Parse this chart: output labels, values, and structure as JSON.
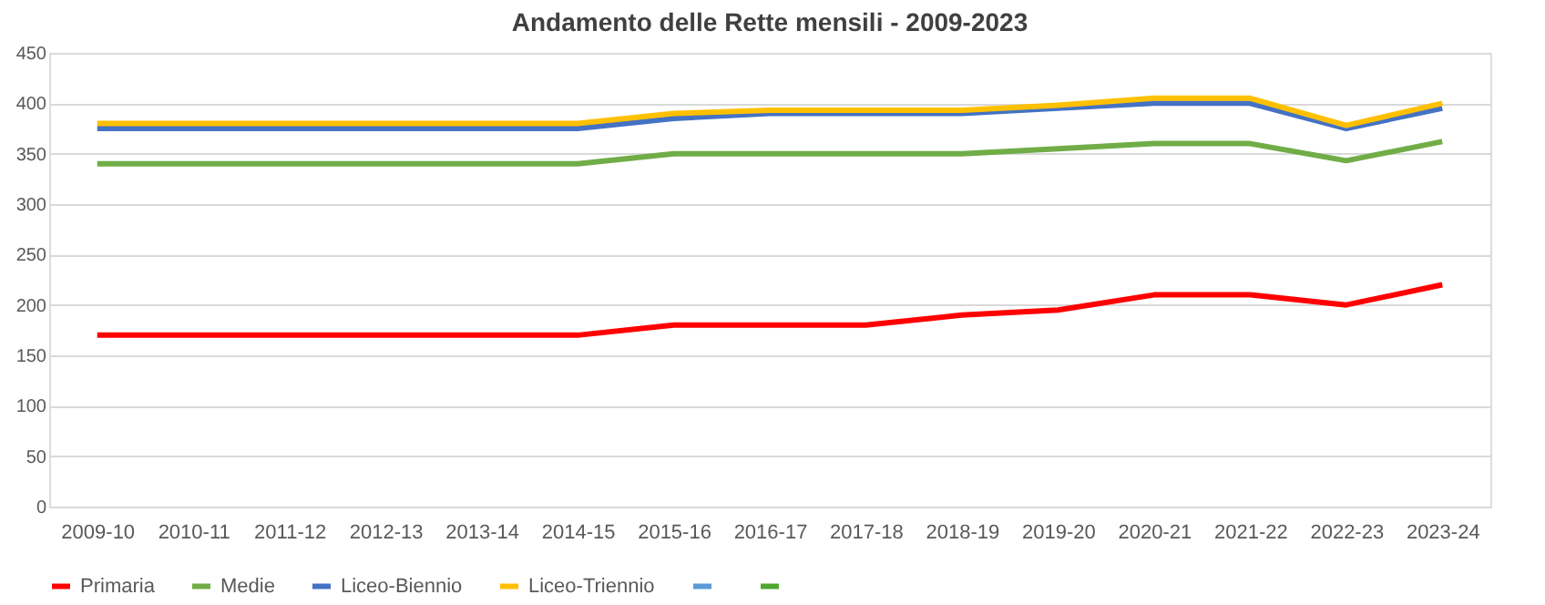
{
  "chart_data": {
    "type": "line",
    "title": "Andamento delle Rette mensili - 2009-2023",
    "categories": [
      "2009-10",
      "2010-11",
      "2011-12",
      "2012-13",
      "2013-14",
      "2014-15",
      "2015-16",
      "2016-17",
      "2017-18",
      "2018-19",
      "2019-20",
      "2020-21",
      "2021-22",
      "2022-23",
      "2023-24"
    ],
    "series": [
      {
        "name": "Primaria",
        "color": "#ff0000",
        "values": [
          170,
          170,
          170,
          170,
          170,
          170,
          180,
          180,
          180,
          190,
          195,
          210,
          210,
          200,
          220
        ]
      },
      {
        "name": "Medie",
        "color": "#70ad47",
        "values": [
          340,
          340,
          340,
          340,
          340,
          340,
          350,
          350,
          350,
          350,
          355,
          360,
          360,
          343,
          362
        ]
      },
      {
        "name": "Liceo-Biennio",
        "color": "#4472c4",
        "values": [
          375,
          375,
          375,
          375,
          375,
          375,
          385,
          390,
          390,
          390,
          395,
          400,
          400,
          375,
          395
        ]
      },
      {
        "name": "Liceo-Triennio",
        "color": "#ffc000",
        "values": [
          380,
          380,
          380,
          380,
          380,
          380,
          390,
          393,
          393,
          393,
          398,
          405,
          405,
          378,
          400
        ]
      },
      {
        "color": "#5b9bd5",
        "values": [
          null,
          null,
          null,
          null,
          null,
          null,
          null,
          null,
          null,
          null,
          null,
          null,
          null,
          null,
          null
        ]
      },
      {
        "color": "#4ea72e",
        "values": [
          null,
          null,
          null,
          null,
          null,
          null,
          null,
          null,
          null,
          null,
          null,
          null,
          null,
          null,
          null
        ]
      }
    ],
    "ylim": [
      0,
      450
    ],
    "yticks": [
      0,
      50,
      100,
      150,
      200,
      250,
      300,
      350,
      400,
      450
    ],
    "grid": "y",
    "legend": "bottom",
    "marker": "none",
    "line_style": "solid"
  }
}
